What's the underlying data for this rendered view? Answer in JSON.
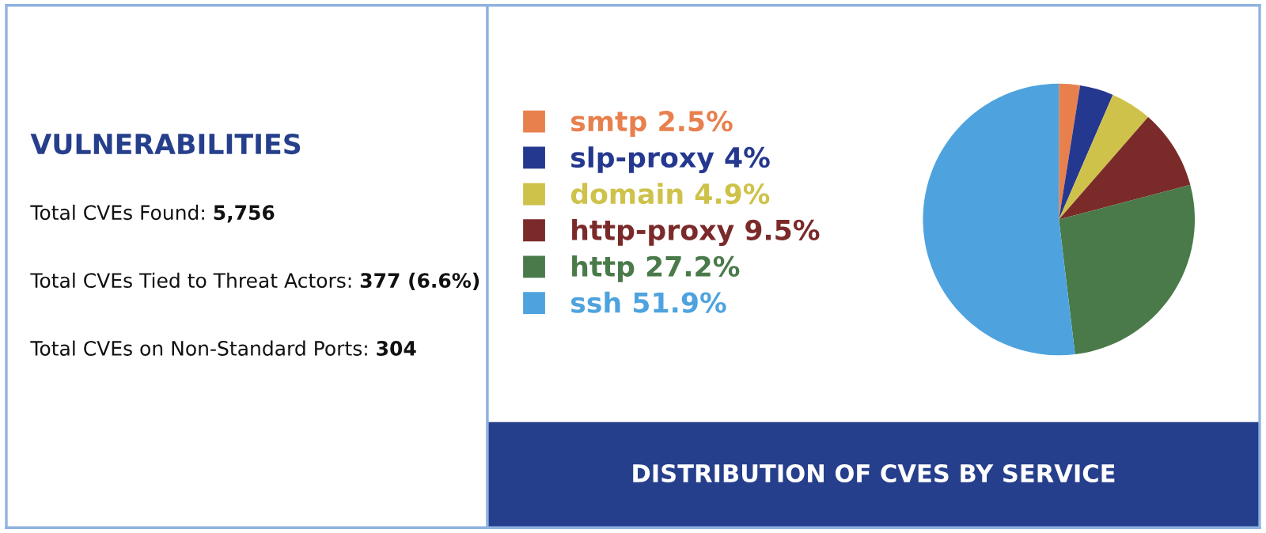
{
  "chart_data": [
    {
      "type": "other",
      "title": "VULNERABILITIES",
      "annotations": [
        "Total CVEs Found: 5,756",
        "Total CVEs Tied to Threat Actors: 377 (6.6%)",
        "Total CVEs on Non-Standard Ports: 304"
      ]
    },
    {
      "type": "pie",
      "title": "DISTRIBUTION OF CVES BY SERVICE",
      "categories": [
        "smtp",
        "slp-proxy",
        "domain",
        "http-proxy",
        "http",
        "ssh"
      ],
      "values": [
        2.5,
        4,
        4.9,
        9.5,
        27.2,
        51.9
      ],
      "value_labels": [
        "2.5%",
        "4%",
        "4.9%",
        "9.5%",
        "27.2%",
        "51.9%"
      ],
      "colors": [
        "#e8804e",
        "#25388f",
        "#cfc24a",
        "#7b2a2a",
        "#4a7a4a",
        "#4ea3de"
      ],
      "legend": "left"
    }
  ]
}
